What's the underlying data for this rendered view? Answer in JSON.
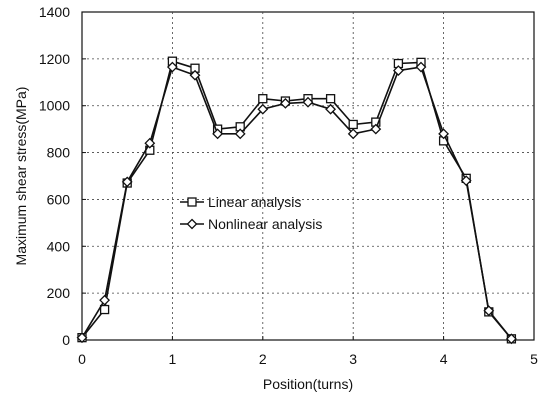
{
  "chart_data": {
    "type": "line",
    "xlabel": "Position(turns)",
    "ylabel": "Maximum shear stress(MPa)",
    "xlim": [
      0,
      5
    ],
    "ylim": [
      0,
      1400
    ],
    "x_ticks": [
      0,
      1,
      2,
      3,
      4,
      5
    ],
    "y_ticks": [
      0,
      200,
      400,
      600,
      800,
      1000,
      1200,
      1400
    ],
    "grid": true,
    "legend_position": "center-left",
    "series": [
      {
        "name": "Linear analysis",
        "marker": "square",
        "x": [
          0,
          0.25,
          0.5,
          0.75,
          1.0,
          1.25,
          1.5,
          1.75,
          2.0,
          2.25,
          2.5,
          2.75,
          3.0,
          3.25,
          3.5,
          3.75,
          4.0,
          4.25,
          4.5,
          4.75
        ],
        "y": [
          10,
          130,
          670,
          810,
          1190,
          1160,
          900,
          910,
          1030,
          1020,
          1030,
          1030,
          920,
          930,
          1180,
          1185,
          850,
          690,
          120,
          5
        ]
      },
      {
        "name": "Nonlinear analysis",
        "marker": "diamond",
        "x": [
          0,
          0.25,
          0.5,
          0.75,
          1.0,
          1.25,
          1.5,
          1.75,
          2.0,
          2.25,
          2.5,
          2.75,
          3.0,
          3.25,
          3.5,
          3.75,
          4.0,
          4.25,
          4.5,
          4.75
        ],
        "y": [
          10,
          170,
          675,
          840,
          1165,
          1130,
          880,
          880,
          985,
          1010,
          1015,
          985,
          880,
          900,
          1150,
          1165,
          880,
          680,
          125,
          5
        ]
      }
    ]
  }
}
